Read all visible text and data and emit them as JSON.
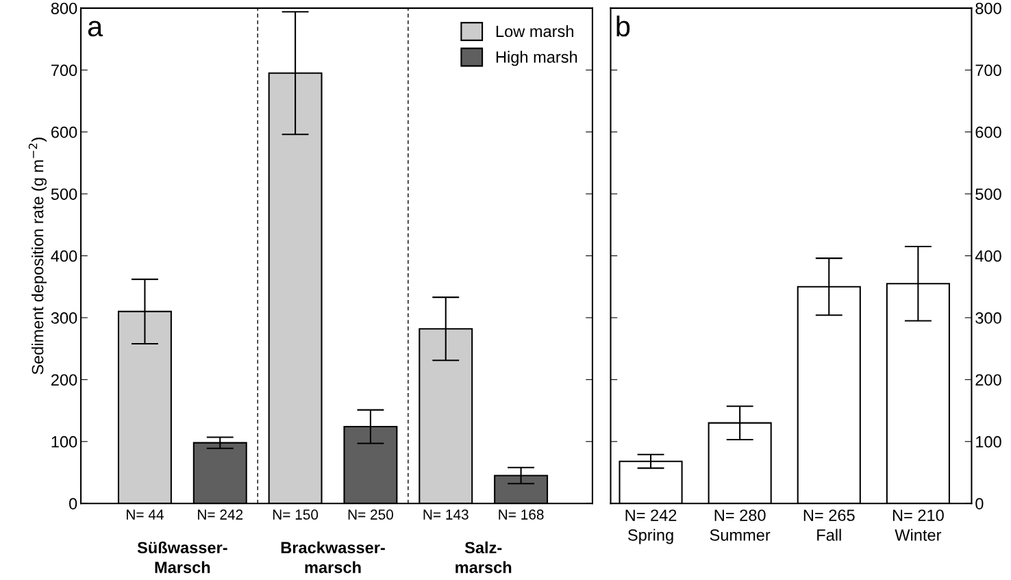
{
  "chart_data": [
    {
      "type": "bar",
      "title": "a",
      "ylabel": "Sediment deposition rate (g m$^{−2}$)",
      "categories": [
        "N= 44",
        "N= 242",
        "N= 150",
        "N= 250",
        "N= 143",
        "N= 168"
      ],
      "series": [
        {
          "name": "Low marsh",
          "color": "#cccccc",
          "values": [
            310,
            null,
            695,
            null,
            282,
            null
          ],
          "errors": [
            52,
            null,
            99,
            null,
            51,
            null
          ]
        },
        {
          "name": "High marsh",
          "color": "#5f5f5f",
          "values": [
            null,
            98,
            null,
            124,
            null,
            45
          ],
          "errors": [
            null,
            9,
            null,
            27,
            null,
            13
          ]
        }
      ],
      "ylim": [
        0,
        800
      ],
      "yticks": [
        0,
        100,
        200,
        300,
        400,
        500,
        600,
        700,
        800
      ],
      "annotations": [
        "Süßwasser-\nMarsch",
        "Brackwasser-\nmarsch",
        "Salz-\nmarsch"
      ],
      "legend": "top right",
      "grid": false
    },
    {
      "type": "bar",
      "title": "b",
      "categories": [
        "N= 242\nSpring",
        "N= 280\nSummer",
        "N= 265\nFall",
        "N= 210\nWinter"
      ],
      "series": [
        {
          "color": "#ffffff",
          "axis": "y2",
          "values": [
            68,
            130,
            350,
            355
          ],
          "errors": [
            11,
            27,
            46,
            60
          ]
        }
      ],
      "y2lim": [
        0,
        800
      ],
      "y2ticks": [
        0,
        100,
        200,
        300,
        400,
        500,
        600,
        700,
        800
      ],
      "grid": false
    }
  ]
}
